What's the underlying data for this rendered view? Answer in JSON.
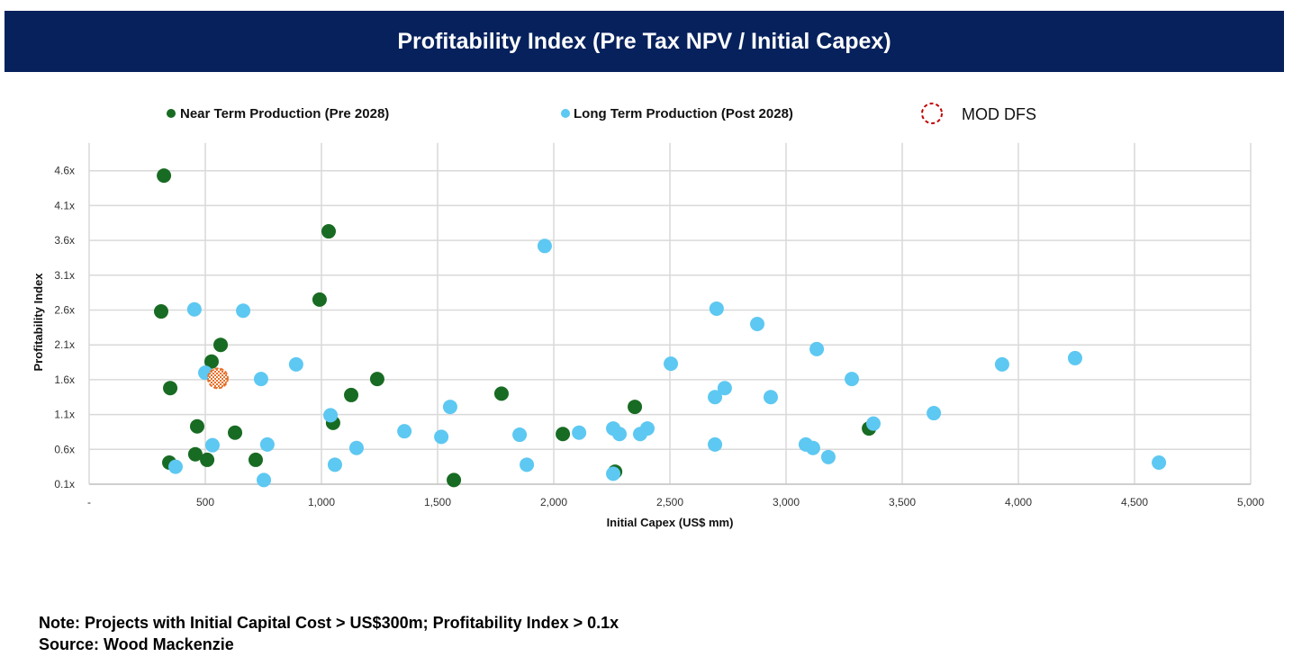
{
  "chart_data": {
    "type": "scatter",
    "title": "Profitability Index (Pre Tax NPV / Initial Capex)",
    "xlabel": "Initial Capex (US$ mm)",
    "ylabel": "Profitability Index",
    "xlim": [
      0,
      5000
    ],
    "ylim": [
      0.1,
      5.0
    ],
    "x_ticks": [
      "-",
      "500",
      "1,000",
      "1,500",
      "2,000",
      "2,500",
      "3,000",
      "3,500",
      "4,000",
      "4,500",
      "5,000"
    ],
    "x_tick_values": [
      0,
      500,
      1000,
      1500,
      2000,
      2500,
      3000,
      3500,
      4000,
      4500,
      5000
    ],
    "y_ticks": [
      "0.1x",
      "0.6x",
      "1.1x",
      "1.6x",
      "2.1x",
      "2.6x",
      "3.1x",
      "3.6x",
      "4.1x",
      "4.6x"
    ],
    "y_tick_values": [
      0.1,
      0.6,
      1.1,
      1.6,
      2.1,
      2.6,
      3.1,
      3.6,
      4.1,
      4.6
    ],
    "grid": true,
    "legend_placement": "top",
    "series": [
      {
        "name": "Near Term Production (Pre 2028)",
        "color": "#186b23",
        "points": [
          [
            322,
            4.53
          ],
          [
            1031,
            3.73
          ],
          [
            992,
            2.75
          ],
          [
            310,
            2.58
          ],
          [
            566,
            2.1
          ],
          [
            527,
            1.86
          ],
          [
            349,
            1.48
          ],
          [
            1240,
            1.61
          ],
          [
            1128,
            1.38
          ],
          [
            1775,
            1.4
          ],
          [
            2349,
            1.21
          ],
          [
            465,
            0.93
          ],
          [
            1050,
            0.98
          ],
          [
            628,
            0.84
          ],
          [
            2039,
            0.82
          ],
          [
            3357,
            0.9
          ],
          [
            457,
            0.53
          ],
          [
            345,
            0.41
          ],
          [
            508,
            0.45
          ],
          [
            717,
            0.45
          ],
          [
            1570,
            0.16
          ],
          [
            2264,
            0.28
          ]
        ]
      },
      {
        "name": "Long Term Production (Post 2028)",
        "color": "#5dc8f2",
        "points": [
          [
            1961,
            3.52
          ],
          [
            2701,
            2.62
          ],
          [
            453,
            2.61
          ],
          [
            663,
            2.59
          ],
          [
            2876,
            2.4
          ],
          [
            3132,
            2.04
          ],
          [
            891,
            1.82
          ],
          [
            2504,
            1.83
          ],
          [
            4244,
            1.91
          ],
          [
            3930,
            1.82
          ],
          [
            500,
            1.7
          ],
          [
            740,
            1.61
          ],
          [
            3283,
            1.61
          ],
          [
            2736,
            1.48
          ],
          [
            2694,
            1.35
          ],
          [
            2934,
            1.35
          ],
          [
            1554,
            1.21
          ],
          [
            1039,
            1.09
          ],
          [
            3636,
            1.12
          ],
          [
            3376,
            0.97
          ],
          [
            1357,
            0.86
          ],
          [
            1516,
            0.78
          ],
          [
            1853,
            0.81
          ],
          [
            2109,
            0.84
          ],
          [
            2256,
            0.9
          ],
          [
            2283,
            0.82
          ],
          [
            2372,
            0.82
          ],
          [
            2403,
            0.9
          ],
          [
            531,
            0.66
          ],
          [
            767,
            0.67
          ],
          [
            1151,
            0.62
          ],
          [
            2694,
            0.67
          ],
          [
            3085,
            0.67
          ],
          [
            3116,
            0.62
          ],
          [
            3182,
            0.49
          ],
          [
            372,
            0.35
          ],
          [
            1058,
            0.38
          ],
          [
            1884,
            0.38
          ],
          [
            752,
            0.16
          ],
          [
            2256,
            0.25
          ],
          [
            4605,
            0.41
          ]
        ]
      },
      {
        "name": "MOD DFS",
        "color": "#e8702a",
        "legend_color": "#c00000",
        "points": [
          [
            554,
            1.62
          ]
        ]
      }
    ]
  },
  "footer": {
    "note": "Note: Projects with Initial Capital Cost > US$300m; Profitability Index > 0.1x",
    "source": "Source: Wood Mackenzie"
  }
}
